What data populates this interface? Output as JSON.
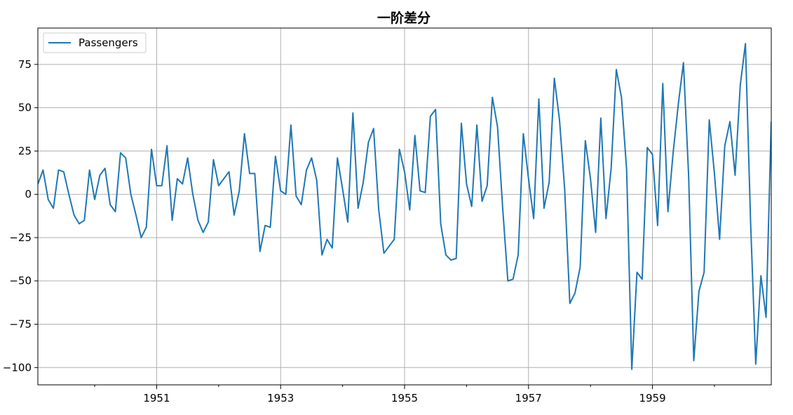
{
  "chart_data": {
    "type": "line",
    "title": "一阶差分",
    "xlabel": "",
    "ylabel": "",
    "xlim": [
      1949.083,
      1960.917
    ],
    "ylim": [
      -110,
      96
    ],
    "yticks": [
      -100,
      -75,
      -50,
      -25,
      0,
      25,
      50,
      75
    ],
    "ytick_labels": [
      "−100",
      "−75",
      "−50",
      "−25",
      "0",
      "25",
      "50",
      "75"
    ],
    "xticks": [
      1951,
      1953,
      1955,
      1957,
      1959
    ],
    "xtick_labels": [
      "1951",
      "1953",
      "1955",
      "1957",
      "1959"
    ],
    "grid": true,
    "legend": {
      "location": "upper left",
      "entries": [
        "Passengers"
      ]
    },
    "color": "#1f77b4",
    "series": [
      {
        "name": "Passengers",
        "start": "1949-02",
        "frequency": "monthly",
        "values": [
          6,
          14,
          -3,
          -8,
          14,
          13,
          0,
          -12,
          -17,
          -15,
          14,
          -3,
          11,
          15,
          -6,
          -10,
          24,
          21,
          0,
          -12,
          -25,
          -19,
          26,
          5,
          5,
          28,
          -15,
          9,
          6,
          21,
          0,
          -15,
          -22,
          -16,
          20,
          5,
          9,
          13,
          -12,
          2,
          35,
          12,
          12,
          -33,
          -18,
          -19,
          22,
          2,
          0,
          40,
          -1,
          -6,
          14,
          21,
          8,
          -35,
          -26,
          -31,
          21,
          3,
          -16,
          47,
          -8,
          7,
          30,
          38,
          -9,
          -34,
          -30,
          -26,
          26,
          13,
          -9,
          34,
          2,
          1,
          45,
          49,
          -17,
          -35,
          -38,
          -37,
          41,
          6,
          -7,
          40,
          -4,
          5,
          56,
          39,
          -8,
          -50,
          -49,
          -35,
          35,
          9,
          -14,
          55,
          -8,
          7,
          67,
          43,
          3,
          -63,
          -57,
          -42,
          31,
          9,
          -22,
          44,
          -14,
          15,
          72,
          56,
          14,
          -101,
          -45,
          -49,
          27,
          23,
          -18,
          64,
          -10,
          24,
          52,
          76,
          11,
          -96,
          -56,
          -45,
          43,
          12,
          -26,
          28,
          42,
          11,
          63,
          87,
          -16,
          -98,
          -47,
          -71,
          42
        ]
      }
    ]
  }
}
